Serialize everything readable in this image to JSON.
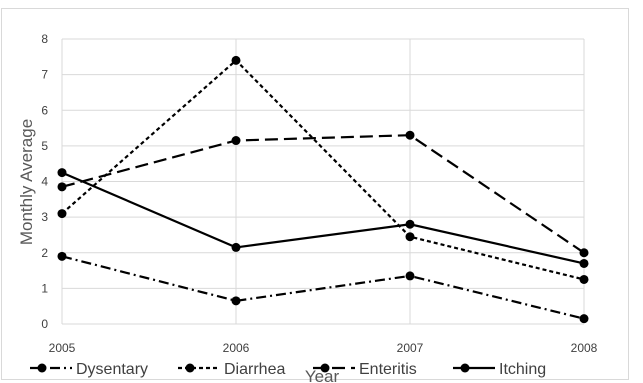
{
  "chart_data": {
    "type": "line",
    "x": [
      "2005",
      "2006",
      "2007",
      "2008"
    ],
    "series": [
      {
        "name": "Dysentary",
        "values": [
          1.9,
          0.65,
          1.35,
          0.15
        ],
        "dash": "dash-dot"
      },
      {
        "name": "Diarrhea",
        "values": [
          3.1,
          7.4,
          2.45,
          1.25
        ],
        "dash": "dotted"
      },
      {
        "name": "Enteritis",
        "values": [
          3.85,
          5.15,
          5.3,
          2.0
        ],
        "dash": "long-dash"
      },
      {
        "name": "Itching",
        "values": [
          4.25,
          2.15,
          2.8,
          1.7
        ],
        "dash": "solid"
      }
    ],
    "title": "",
    "xlabel": "Year",
    "ylabel": "Monthly Average",
    "ylim": [
      0,
      8
    ],
    "yticks": [
      "0",
      "1",
      "2",
      "3",
      "4",
      "5",
      "6",
      "7",
      "8"
    ],
    "grid": true,
    "legend_position": "bottom",
    "line_color": "#000000"
  }
}
